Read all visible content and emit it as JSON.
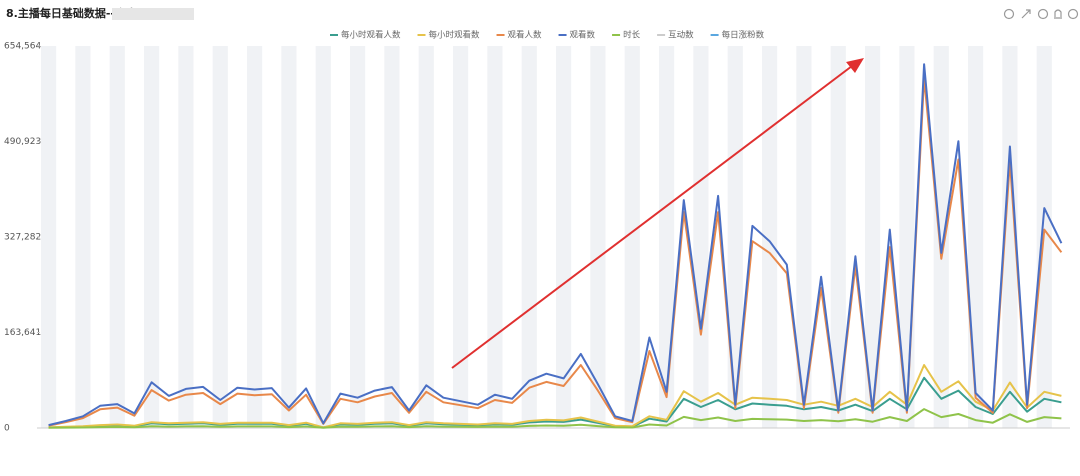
{
  "chart_data": {
    "type": "line",
    "title": "8.主播每日基础数据--个人",
    "ylim": [
      0,
      654564
    ],
    "yticks": [
      0,
      {
        "value": 163641,
        "label": "163,641"
      },
      {
        "value": 327282,
        "label": "327,282"
      },
      {
        "value": 490923,
        "label": "490,923"
      },
      {
        "value": 654564,
        "label": "654,564"
      }
    ],
    "stripes": true,
    "series": [
      {
        "name": "每小时观看人数",
        "color": "#3a9e8f",
        "values": [
          800,
          1600,
          2400,
          4000,
          4800,
          3200,
          8000,
          6400,
          7200,
          8000,
          5600,
          7200,
          7200,
          7200,
          4000,
          7200,
          800,
          6400,
          5600,
          7200,
          8000,
          4000,
          8000,
          6400,
          5600,
          4800,
          6400,
          5600,
          9600,
          11200,
          10400,
          14400,
          8800,
          3200,
          2400,
          16000,
          11200,
          50000,
          36000,
          48000,
          32000,
          42000,
          40000,
          38000,
          32000,
          36000,
          30000,
          40000,
          29000,
          50000,
          32000,
          86000,
          50000,
          64000,
          36000,
          24000,
          62000,
          28000,
          50000,
          44000
        ]
      },
      {
        "name": "每小时观看数",
        "color": "#e6c34a",
        "values": [
          1000,
          2000,
          3000,
          5000,
          6000,
          4000,
          10000,
          8000,
          9000,
          10000,
          7000,
          9000,
          9000,
          9000,
          5000,
          9000,
          1000,
          8000,
          7000,
          9000,
          10000,
          5000,
          10000,
          8000,
          7000,
          6000,
          8000,
          7000,
          12000,
          14000,
          13000,
          18000,
          11000,
          4000,
          3000,
          20000,
          14000,
          63000,
          45000,
          60000,
          40000,
          52000,
          50000,
          48000,
          40000,
          45000,
          38000,
          50000,
          36000,
          62000,
          40000,
          108000,
          62000,
          80000,
          45000,
          30000,
          78000,
          35000,
          62000,
          55000
        ]
      },
      {
        "name": "观看人数",
        "color": "#e8884a",
        "values": [
          4000,
          10000,
          17000,
          32000,
          35000,
          21000,
          65000,
          47000,
          57000,
          60000,
          41000,
          59000,
          56000,
          58000,
          30000,
          57000,
          7000,
          50000,
          44000,
          54000,
          60000,
          26000,
          62000,
          44000,
          39000,
          34000,
          48000,
          43000,
          69000,
          79000,
          72000,
          108000,
          64000,
          17000,
          10000,
          132000,
          53000,
          370000,
          160000,
          370000,
          34000,
          320000,
          300000,
          265000,
          34000,
          240000,
          26000,
          277000,
          26000,
          310000,
          26000,
          600000,
          290000,
          460000,
          52000,
          26000,
          457000,
          34000,
          340000,
          301000
        ]
      },
      {
        "name": "观看数",
        "color": "#4a6fc4",
        "values": [
          5000,
          12000,
          20000,
          38000,
          41000,
          25000,
          78237,
          55000,
          67000,
          70411,
          48000,
          69000,
          66000,
          68439,
          35000,
          67776,
          8000,
          59000,
          52000,
          64028,
          70091,
          30000,
          73200,
          52000,
          46000,
          40000,
          57000,
          50000,
          81000,
          93000,
          85000,
          127007,
          75000,
          20000,
          12000,
          155087,
          62000,
          390463,
          170000,
          397736,
          40000,
          346369,
          320000,
          280000,
          40000,
          259339,
          30000,
          294217,
          30000,
          339895,
          30000,
          623394,
          300000,
          491506,
          60000,
          30000,
          482290,
          40000,
          376861,
          316691
        ]
      },
      {
        "name": "时长",
        "color": "#8fc34a",
        "values": [
          300,
          600,
          900,
          1500,
          1800,
          1200,
          3000,
          2400,
          2700,
          3000,
          2100,
          2700,
          2700,
          2700,
          1500,
          2700,
          300,
          2400,
          2100,
          2700,
          3000,
          1500,
          3000,
          2400,
          2100,
          1800,
          2400,
          2100,
          3600,
          4200,
          3900,
          5400,
          3300,
          1200,
          900,
          6000,
          4200,
          19000,
          13500,
          18000,
          12000,
          15600,
          15000,
          14400,
          12000,
          13500,
          11400,
          15000,
          10800,
          18600,
          12000,
          32400,
          18600,
          24000,
          13500,
          9000,
          23400,
          10500,
          18600,
          16500
        ]
      }
    ],
    "legend_extra": [
      {
        "name": "互动数",
        "color": "#cccccc"
      },
      {
        "name": "每日涨粉数",
        "color": "#5aa7e0"
      }
    ]
  }
}
